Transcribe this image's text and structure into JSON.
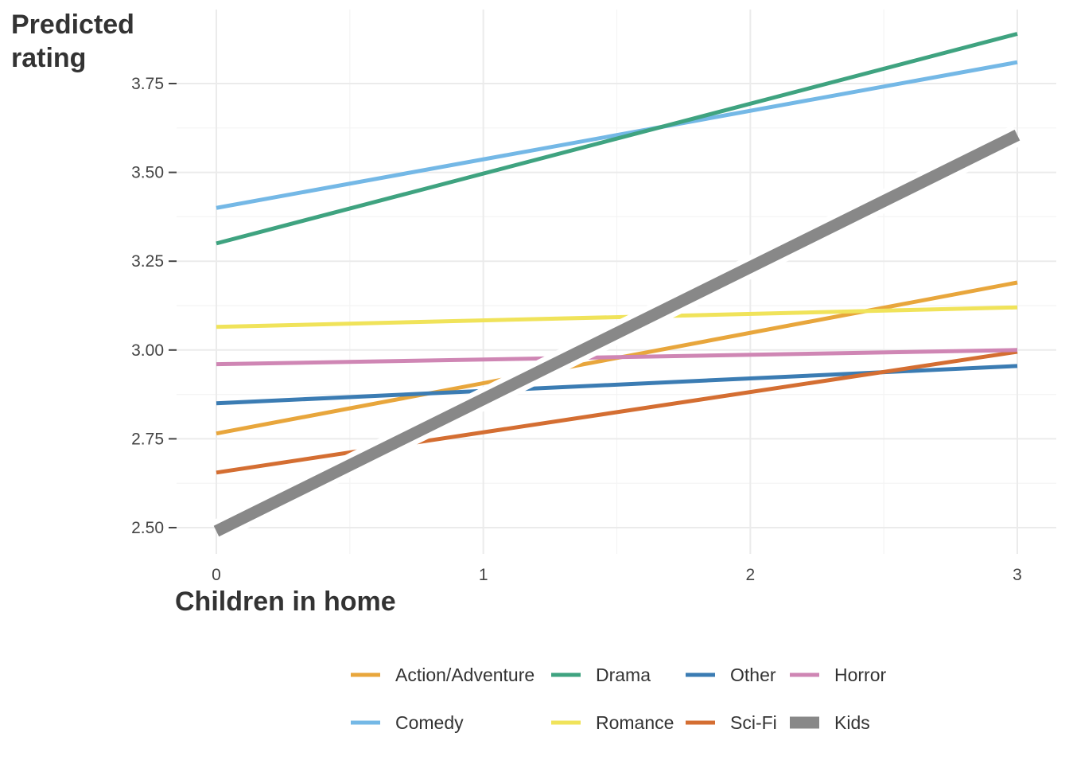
{
  "chart_data": {
    "type": "line",
    "title": "",
    "ylabel_lines": [
      "Predicted",
      "rating"
    ],
    "xlabel": "Children in home",
    "xlim": [
      0,
      3
    ],
    "ylim": [
      2.43,
      3.87
    ],
    "x_ticks": [
      0,
      1,
      2,
      3
    ],
    "x_tick_labels": [
      "0",
      "1",
      "2",
      "3"
    ],
    "y_ticks": [
      2.5,
      2.75,
      3.0,
      3.25,
      3.5,
      3.75
    ],
    "y_tick_labels": [
      "2.50",
      "2.75",
      "3.00",
      "3.25",
      "3.50",
      "3.75"
    ],
    "grid": true,
    "legend_position": "bottom",
    "x": [
      0,
      3
    ],
    "series": [
      {
        "name": "Action/Adventure",
        "values": [
          2.765,
          3.19
        ],
        "color": "#E8A63C",
        "emphasis": false
      },
      {
        "name": "Comedy",
        "values": [
          3.4,
          3.81
        ],
        "color": "#74B8E6",
        "emphasis": false
      },
      {
        "name": "Drama",
        "values": [
          3.3,
          3.89
        ],
        "color": "#3FA380",
        "emphasis": false
      },
      {
        "name": "Romance",
        "values": [
          3.065,
          3.12
        ],
        "color": "#F0E35A",
        "emphasis": false
      },
      {
        "name": "Other",
        "values": [
          2.85,
          2.955
        ],
        "color": "#3B7CB3",
        "emphasis": false
      },
      {
        "name": "Sci-Fi",
        "values": [
          2.655,
          2.995
        ],
        "color": "#D46E32",
        "emphasis": false
      },
      {
        "name": "Horror",
        "values": [
          2.96,
          3.0
        ],
        "color": "#CF86B4",
        "emphasis": false
      },
      {
        "name": "Kids",
        "values": [
          2.49,
          3.605
        ],
        "color": "#888888",
        "emphasis": true
      }
    ],
    "legend_order": [
      "Action/Adventure",
      "Drama",
      "Other",
      "Horror",
      "Comedy",
      "Romance",
      "Sci-Fi",
      "Kids"
    ]
  }
}
